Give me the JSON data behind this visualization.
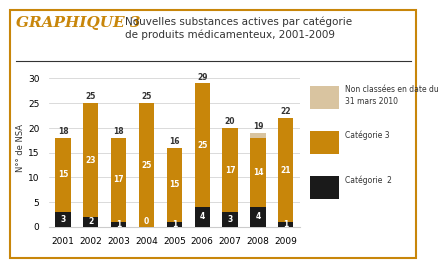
{
  "years": [
    "2001",
    "2002",
    "2003",
    "2004",
    "2005",
    "2006",
    "2007",
    "2008",
    "2009"
  ],
  "cat2": [
    3,
    2,
    1,
    0,
    1,
    4,
    3,
    4,
    1
  ],
  "cat3": [
    15,
    23,
    17,
    25,
    15,
    25,
    17,
    14,
    21
  ],
  "unclassified": [
    0,
    0,
    0,
    0,
    0,
    0,
    0,
    1,
    0
  ],
  "totals": [
    18,
    25,
    18,
    25,
    16,
    29,
    20,
    19,
    22
  ],
  "color_cat2": "#1a1a1a",
  "color_cat3": "#c8860a",
  "color_unclassified": "#d9c4a0",
  "title_graphique": "GRAPHIQUE 3",
  "title_text": "Nouvelles substances actives par catégorie\nde produits médicamenteux, 2001-2009",
  "ylabel": "N°° de NSA",
  "ylim": [
    0,
    32
  ],
  "yticks": [
    0,
    5,
    10,
    15,
    20,
    25,
    30
  ],
  "legend_unclassified": "Non classées en date du\n31 mars 2010",
  "legend_cat3": "Catégorie 3",
  "legend_cat2": "Catégorie  2",
  "border_color": "#c8860a",
  "title_color": "#c8860a",
  "subtitle_color": "#333333",
  "bar_width": 0.55
}
